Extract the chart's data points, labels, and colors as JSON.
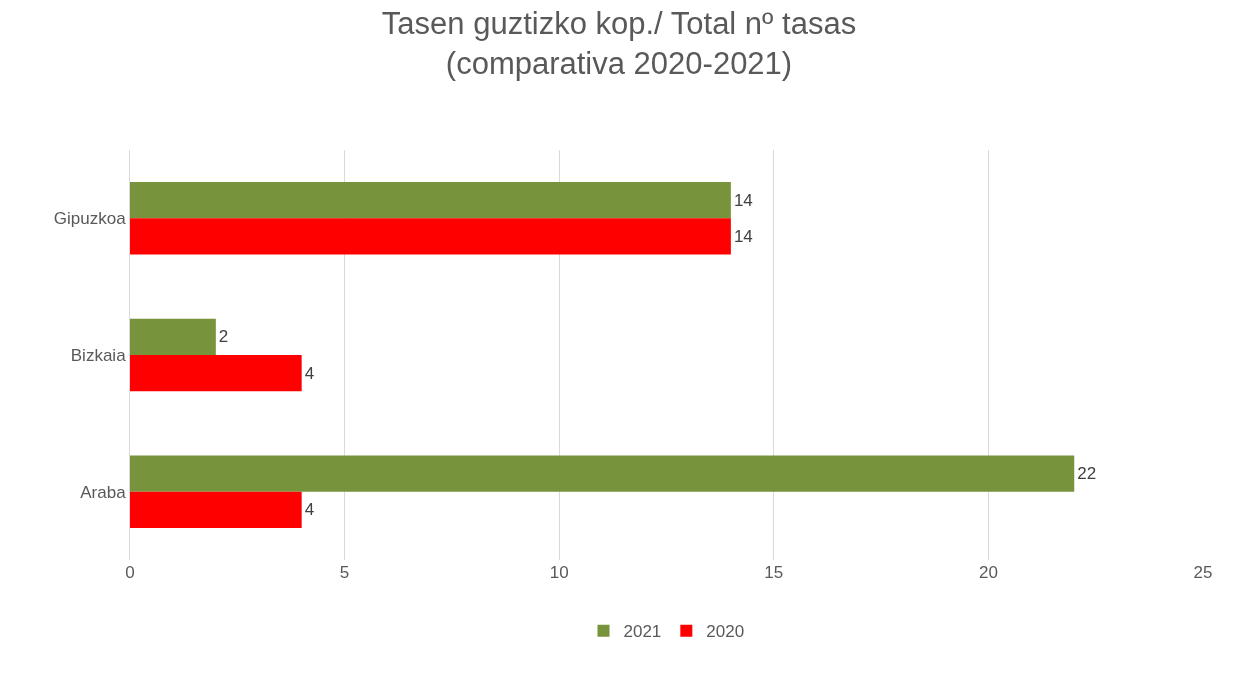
{
  "chart_data": {
    "type": "bar",
    "orientation": "horizontal",
    "title": "Tasen guztizko kop./ Total nº tasas\n(comparativa 2020-2021)",
    "categories": [
      "Gipuzkoa",
      "Bizkaia",
      "Araba"
    ],
    "series": [
      {
        "name": "2021",
        "color": "#77933c",
        "values": [
          14,
          2,
          22
        ]
      },
      {
        "name": "2020",
        "color": "#ff0000",
        "values": [
          14,
          4,
          4
        ]
      }
    ],
    "xlim": [
      0,
      25
    ],
    "xticks": [
      0,
      5,
      10,
      15,
      20,
      25
    ],
    "grid": "x",
    "legend": "bottom",
    "data_labels": true
  }
}
